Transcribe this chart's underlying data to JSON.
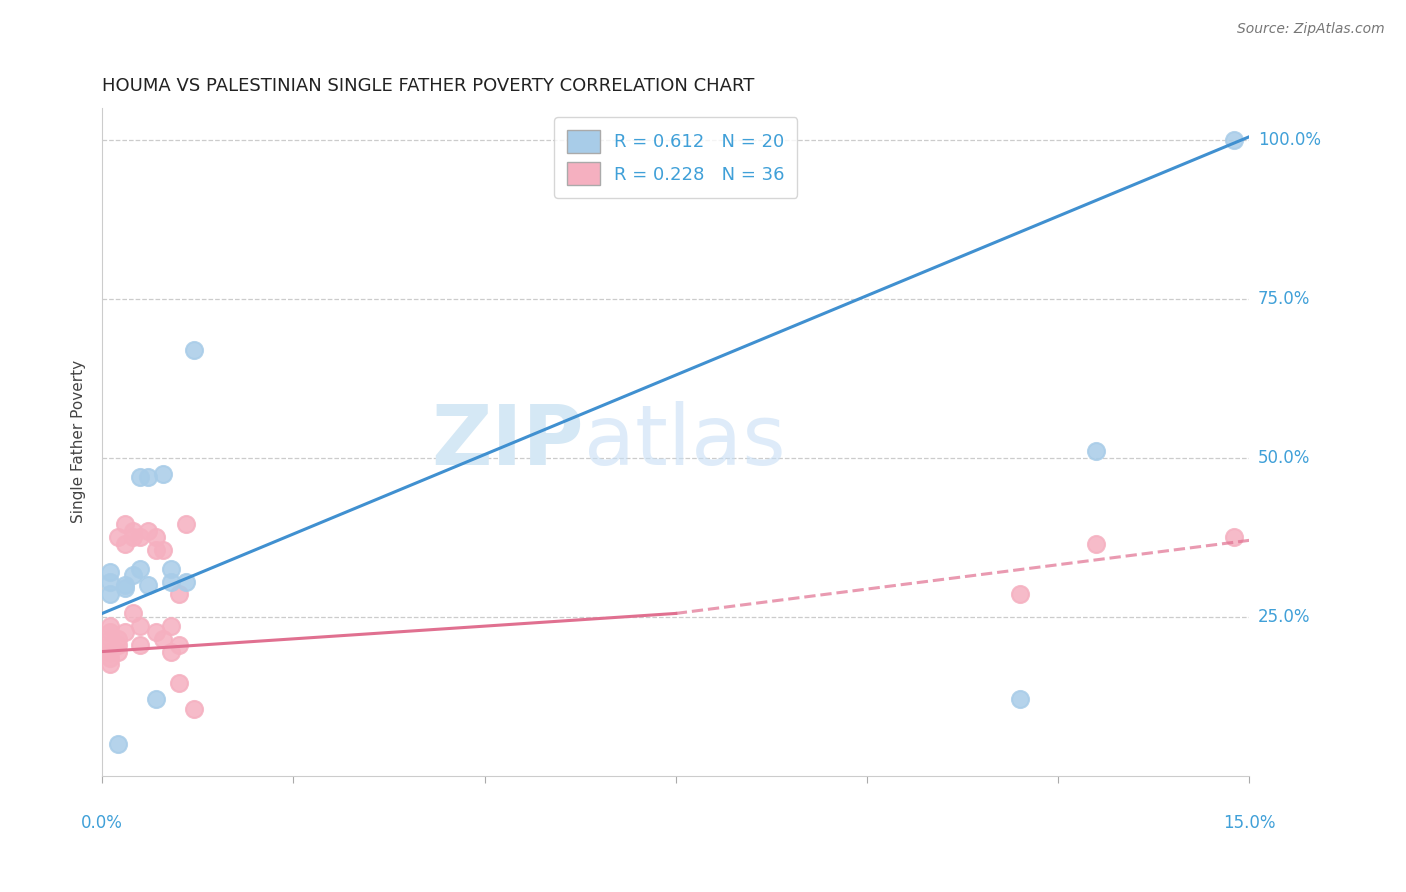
{
  "title": "HOUMA VS PALESTINIAN SINGLE FATHER POVERTY CORRELATION CHART",
  "source": "Source: ZipAtlas.com",
  "ylabel": "Single Father Poverty",
  "houma_R": 0.612,
  "houma_N": 20,
  "palestinian_R": 0.228,
  "palestinian_N": 36,
  "houma_color": "#a8cce8",
  "palestinian_color": "#f5b0c0",
  "houma_line_color": "#4090d0",
  "palestinian_line_color": "#e07090",
  "background_color": "#ffffff",
  "legend_text_color": "#40a0d8",
  "houma_x": [
    0.001,
    0.001,
    0.002,
    0.003,
    0.004,
    0.005,
    0.005,
    0.006,
    0.006,
    0.007,
    0.008,
    0.009,
    0.009,
    0.011,
    0.012,
    0.12,
    0.13,
    0.148,
    0.001,
    0.003
  ],
  "houma_y": [
    0.285,
    0.305,
    0.05,
    0.295,
    0.315,
    0.325,
    0.47,
    0.47,
    0.3,
    0.12,
    0.475,
    0.305,
    0.325,
    0.305,
    0.67,
    0.12,
    0.51,
    1.0,
    0.32,
    0.3
  ],
  "palestinian_x": [
    0.001,
    0.001,
    0.001,
    0.001,
    0.001,
    0.001,
    0.001,
    0.002,
    0.002,
    0.002,
    0.002,
    0.003,
    0.003,
    0.003,
    0.004,
    0.004,
    0.004,
    0.005,
    0.005,
    0.005,
    0.006,
    0.007,
    0.007,
    0.007,
    0.008,
    0.008,
    0.009,
    0.009,
    0.01,
    0.01,
    0.01,
    0.011,
    0.012,
    0.12,
    0.13,
    0.148
  ],
  "palestinian_y": [
    0.175,
    0.185,
    0.195,
    0.205,
    0.215,
    0.225,
    0.235,
    0.195,
    0.205,
    0.215,
    0.375,
    0.225,
    0.365,
    0.395,
    0.375,
    0.385,
    0.255,
    0.205,
    0.235,
    0.375,
    0.385,
    0.225,
    0.355,
    0.375,
    0.215,
    0.355,
    0.195,
    0.235,
    0.285,
    0.145,
    0.205,
    0.395,
    0.105,
    0.285,
    0.365,
    0.375
  ],
  "houma_line_x0": 0.0,
  "houma_line_x1": 0.15,
  "houma_line_y0": 0.255,
  "houma_line_y1": 1.005,
  "pal_line_x0": 0.0,
  "pal_line_x1": 0.15,
  "pal_line_y0": 0.195,
  "pal_line_y1": 0.315,
  "pal_line_dash_y0": 0.195,
  "pal_line_dash_y1": 0.37,
  "xmin": 0.0,
  "xmax": 0.15,
  "ymin": 0.0,
  "ymax": 1.05,
  "ytick_vals": [
    0.25,
    0.5,
    0.75,
    1.0
  ],
  "ytick_labels": [
    "25.0%",
    "50.0%",
    "75.0%",
    "100.0%"
  ],
  "grid_color": "#cccccc",
  "watermark_color": "#d5e8f5"
}
